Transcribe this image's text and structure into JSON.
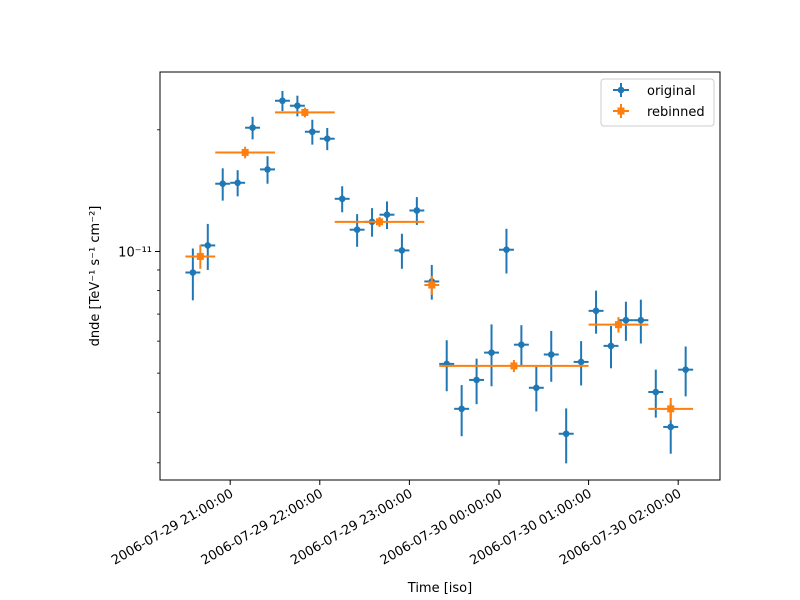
{
  "chart_data": {
    "type": "scatter",
    "title": "",
    "xlabel": "Time [iso]",
    "ylabel": "dnde [TeV⁻¹ s⁻¹ cm⁻²]",
    "xlim": [
      "2006-07-29T20:13:00",
      "2006-07-30T02:28:00"
    ],
    "ylim": [
      2.72e-12,
      2.78e-11
    ],
    "yscale": "log",
    "grid": false,
    "legend_position": "top-right",
    "x_ticks": [
      {
        "t": "2006-07-29T21:00:00",
        "label": "2006-07-29 21:00:00"
      },
      {
        "t": "2006-07-29T22:00:00",
        "label": "2006-07-29 22:00:00"
      },
      {
        "t": "2006-07-29T23:00:00",
        "label": "2006-07-29 23:00:00"
      },
      {
        "t": "2006-07-30T00:00:00",
        "label": "2006-07-30 00:00:00"
      },
      {
        "t": "2006-07-30T01:00:00",
        "label": "2006-07-30 01:00:00"
      },
      {
        "t": "2006-07-30T02:00:00",
        "label": "2006-07-30 02:00:00"
      }
    ],
    "y_major_ticks": [
      {
        "v": 1e-11,
        "label": "10⁻¹¹"
      }
    ],
    "y_minor_ticks": [
      3e-12,
      4e-12,
      5e-12,
      6e-12,
      7e-12,
      8e-12,
      9e-12,
      2e-11
    ],
    "series": [
      {
        "name": "original",
        "color": "#1f77b4",
        "marker": "circle",
        "bin_minutes": 10,
        "points": [
          [
            "2006-07-29T20:35:00",
            8.87e-12,
            1.3e-12
          ],
          [
            "2006-07-29T20:45:00",
            1.035e-11,
            1.35e-12
          ],
          [
            "2006-07-29T20:55:00",
            1.471e-11,
            1.35e-12
          ],
          [
            "2006-07-29T21:05:00",
            1.479e-11,
            1.1e-12
          ],
          [
            "2006-07-29T21:15:00",
            2.024e-11,
            1.3e-12
          ],
          [
            "2006-07-29T21:25:00",
            1.596e-11,
            1.25e-12
          ],
          [
            "2006-07-29T21:35:00",
            2.36e-11,
            1.35e-12
          ],
          [
            "2006-07-29T21:45:00",
            2.294e-11,
            1.35e-12
          ],
          [
            "2006-07-29T21:55:00",
            1.978e-11,
            1.4e-12
          ],
          [
            "2006-07-29T22:05:00",
            1.901e-11,
            1.2e-12
          ],
          [
            "2006-07-29T22:15:00",
            1.35e-11,
            1e-12
          ],
          [
            "2006-07-29T22:25:00",
            1.132e-11,
            1.05e-12
          ],
          [
            "2006-07-29T22:35:00",
            1.184e-11,
            9.6e-13
          ],
          [
            "2006-07-29T22:45:00",
            1.233e-11,
            9.7e-13
          ],
          [
            "2006-07-29T22:55:00",
            1.006e-11,
            1e-12
          ],
          [
            "2006-07-29T23:05:00",
            1.263e-11,
            1e-12
          ],
          [
            "2006-07-29T23:15:00",
            8.43e-12,
            8.3e-13
          ],
          [
            "2006-07-29T23:25:00",
            5.27e-12,
            7.6e-13
          ],
          [
            "2006-07-29T23:35:00",
            4.08e-12,
            5.9e-13
          ],
          [
            "2006-07-29T23:45:00",
            4.81e-12,
            6.2e-13
          ],
          [
            "2006-07-29T23:55:00",
            5.62e-12,
            9.8e-13
          ],
          [
            "2006-07-30T00:05:00",
            1.01e-11,
            1.28e-12
          ],
          [
            "2006-07-30T00:15:00",
            5.88e-12,
            6.9e-13
          ],
          [
            "2006-07-30T00:25:00",
            4.6e-12,
            5.8e-13
          ],
          [
            "2006-07-30T00:35:00",
            5.56e-12,
            8e-13
          ],
          [
            "2006-07-30T00:45:00",
            3.54e-12,
            5.5e-13
          ],
          [
            "2006-07-30T00:55:00",
            5.33e-12,
            6.7e-13
          ],
          [
            "2006-07-30T01:05:00",
            7.13e-12,
            8.7e-13
          ],
          [
            "2006-07-30T01:15:00",
            5.84e-12,
            7e-13
          ],
          [
            "2006-07-30T01:25:00",
            6.76e-12,
            7.5e-13
          ],
          [
            "2006-07-30T01:35:00",
            6.76e-12,
            8.4e-13
          ],
          [
            "2006-07-30T01:45:00",
            4.49e-12,
            6.1e-13
          ],
          [
            "2006-07-30T01:55:00",
            3.68e-12,
            5.2e-13
          ],
          [
            "2006-07-30T02:05:00",
            5.1e-12,
            7.2e-13
          ]
        ]
      },
      {
        "name": "rebinned",
        "color": "#ff7f0e",
        "marker": "square",
        "bins": [
          [
            "2006-07-29T20:30:00",
            "2006-07-29T20:50:00",
            9.72e-12,
            6.6e-13
          ],
          [
            "2006-07-29T20:50:00",
            "2006-07-29T21:30:00",
            1.758e-11,
            5.8e-13
          ],
          [
            "2006-07-29T21:30:00",
            "2006-07-29T22:10:00",
            2.208e-11,
            6.2e-13
          ],
          [
            "2006-07-29T22:10:00",
            "2006-07-29T23:10:00",
            1.184e-11,
            3.4e-13
          ],
          [
            "2006-07-29T23:10:00",
            "2006-07-29T23:20:00",
            8.26e-12,
            4.5e-13
          ],
          [
            "2006-07-29T23:20:00",
            "2006-07-30T01:00:00",
            5.21e-12,
            1.8e-13
          ],
          [
            "2006-07-30T01:00:00",
            "2006-07-30T01:40:00",
            6.59e-12,
            2.9e-13
          ],
          [
            "2006-07-30T01:40:00",
            "2006-07-30T02:10:00",
            4.08e-12,
            2.6e-13
          ]
        ]
      }
    ]
  }
}
